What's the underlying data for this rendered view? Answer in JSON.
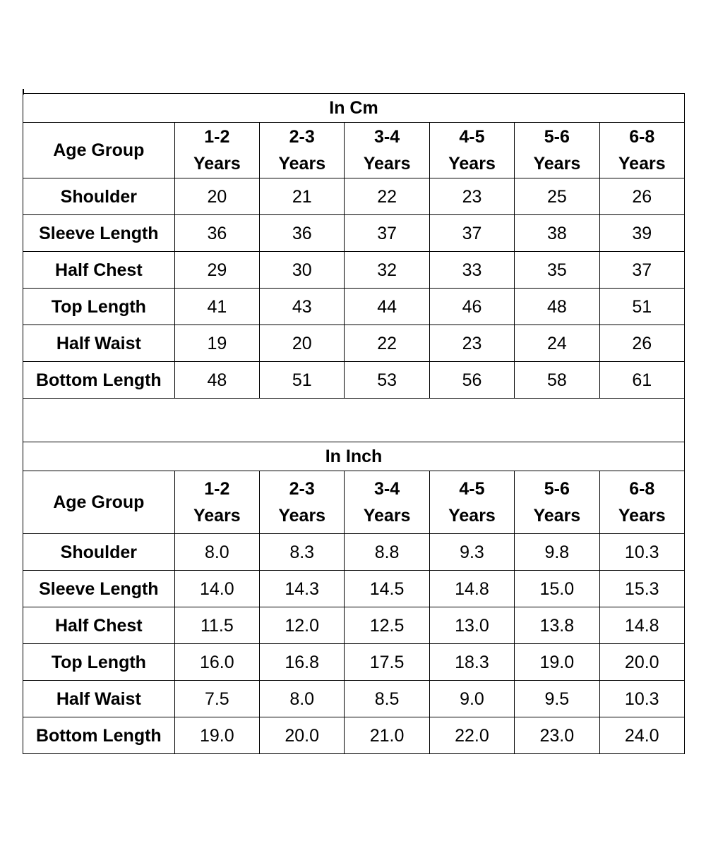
{
  "tables": [
    {
      "title": "In Cm",
      "corner_label": "Age Group",
      "columns": [
        {
          "range": "1-2",
          "unit": "Years"
        },
        {
          "range": "2-3",
          "unit": "Years"
        },
        {
          "range": "3-4",
          "unit": "Years"
        },
        {
          "range": "4-5",
          "unit": "Years"
        },
        {
          "range": "5-6",
          "unit": "Years"
        },
        {
          "range": "6-8",
          "unit": "Years"
        }
      ],
      "rows": [
        {
          "label": "Shoulder",
          "values": [
            "20",
            "21",
            "22",
            "23",
            "25",
            "26"
          ]
        },
        {
          "label": "Sleeve Length",
          "values": [
            "36",
            "36",
            "37",
            "37",
            "38",
            "39"
          ]
        },
        {
          "label": "Half Chest",
          "values": [
            "29",
            "30",
            "32",
            "33",
            "35",
            "37"
          ]
        },
        {
          "label": "Top Length",
          "values": [
            "41",
            "43",
            "44",
            "46",
            "48",
            "51"
          ]
        },
        {
          "label": "Half Waist",
          "values": [
            "19",
            "20",
            "22",
            "23",
            "24",
            "26"
          ]
        },
        {
          "label": "Bottom Length",
          "values": [
            "48",
            "51",
            "53",
            "56",
            "58",
            "61"
          ]
        }
      ]
    },
    {
      "title": "In Inch",
      "corner_label": "Age Group",
      "columns": [
        {
          "range": "1-2",
          "unit": "Years"
        },
        {
          "range": "2-3",
          "unit": "Years"
        },
        {
          "range": "3-4",
          "unit": "Years"
        },
        {
          "range": "4-5",
          "unit": "Years"
        },
        {
          "range": "5-6",
          "unit": "Years"
        },
        {
          "range": "6-8",
          "unit": "Years"
        }
      ],
      "rows": [
        {
          "label": "Shoulder",
          "values": [
            "8.0",
            "8.3",
            "8.8",
            "9.3",
            "9.8",
            "10.3"
          ]
        },
        {
          "label": "Sleeve Length",
          "values": [
            "14.0",
            "14.3",
            "14.5",
            "14.8",
            "15.0",
            "15.3"
          ]
        },
        {
          "label": "Half Chest",
          "values": [
            "11.5",
            "12.0",
            "12.5",
            "13.0",
            "13.8",
            "14.8"
          ]
        },
        {
          "label": "Top Length",
          "values": [
            "16.0",
            "16.8",
            "17.5",
            "18.3",
            "19.0",
            "20.0"
          ]
        },
        {
          "label": "Half Waist",
          "values": [
            "7.5",
            "8.0",
            "8.5",
            "9.0",
            "9.5",
            "10.3"
          ]
        },
        {
          "label": "Bottom Length",
          "values": [
            "19.0",
            "20.0",
            "21.0",
            "22.0",
            "23.0",
            "24.0"
          ]
        }
      ]
    }
  ]
}
